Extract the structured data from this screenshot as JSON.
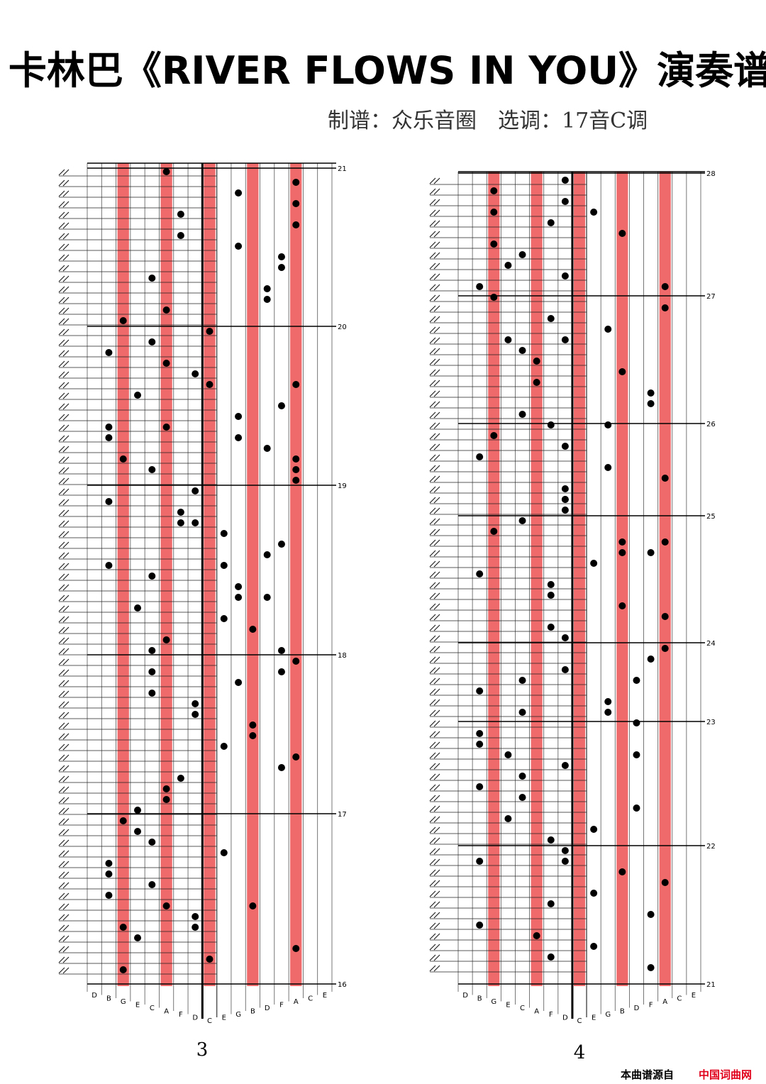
{
  "header": {
    "title": "卡林巴《RIVER FLOWS IN YOU》演奏谱",
    "subtitle": "制谱：众乐音圈　选调：17音C调"
  },
  "keys": [
    "D",
    "B",
    "G",
    "E",
    "C",
    "A",
    "F",
    "D",
    "C",
    "E",
    "G",
    "B",
    "D",
    "F",
    "A",
    "C",
    "E"
  ],
  "panels": [
    {
      "measures": [
        "21",
        "20",
        "19",
        "18",
        "17",
        "16"
      ],
      "page": "3"
    },
    {
      "measures": [
        "28",
        "27",
        "26",
        "25",
        "24",
        "23",
        "22",
        "21"
      ],
      "page": "4"
    }
  ],
  "footer": {
    "source": "本曲谱源自",
    "site": "中国词曲网"
  }
}
